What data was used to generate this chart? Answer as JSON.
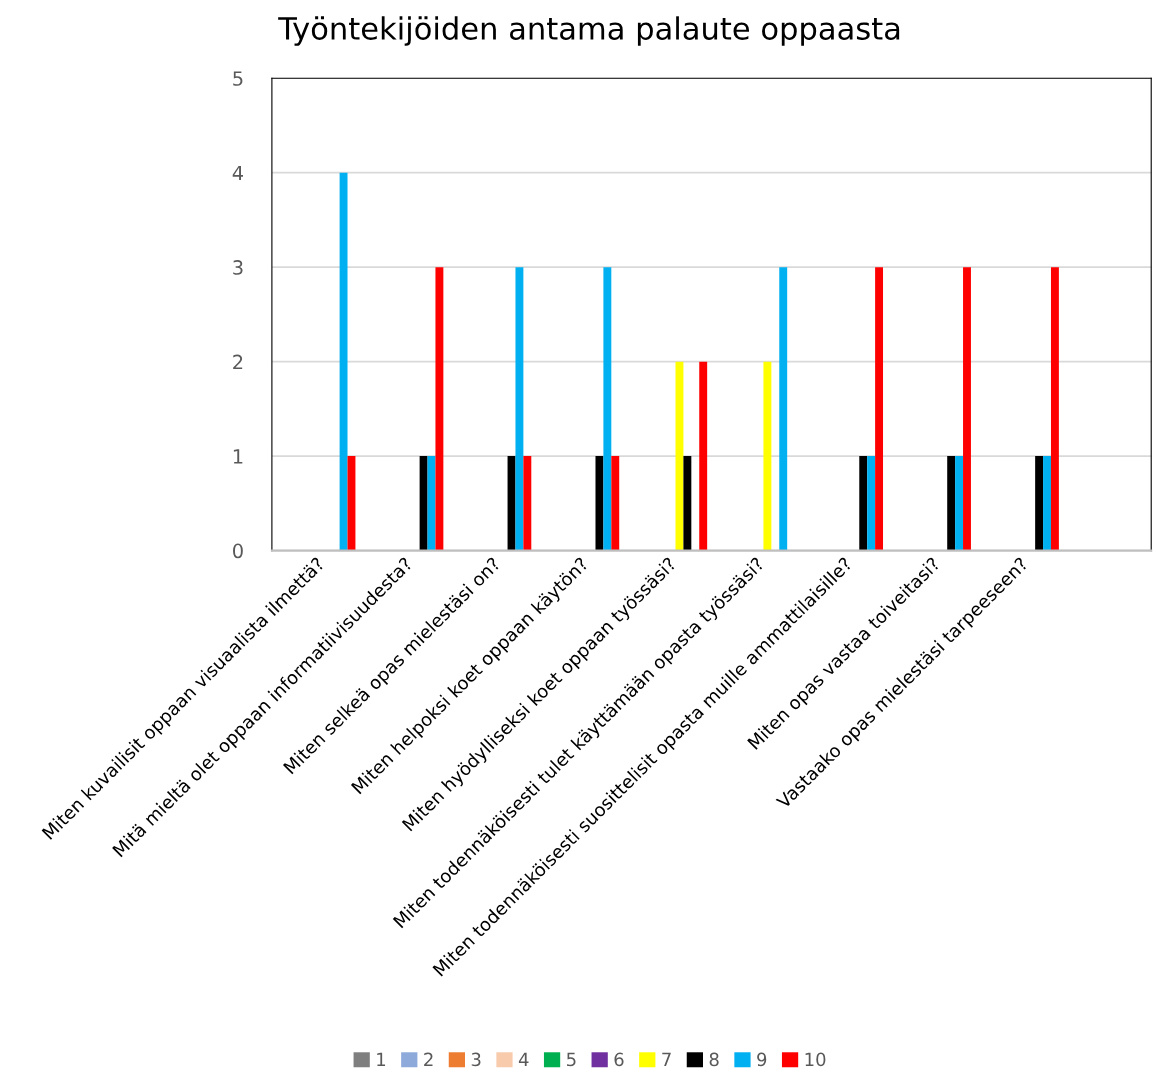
{
  "chart_data": {
    "type": "bar",
    "title": "Työntekijöiden antama palaute oppaasta",
    "categories": [
      "Miten kuvailisit oppaan visuaalista ilmettä?",
      "Mitä mieltä olet oppaan informatiivisuudesta?",
      "Miten selkeä opas mielestäsi on?",
      "Miten helpoksi koet oppaan käytön?",
      "Miten hyödylliseksi koet oppaan työssäsi?",
      "Miten todennäköisesti tulet käyttämään opasta työssäsi?",
      "Miten todennäköisesti suosittelisit opasta muille ammattilaisille?",
      "Miten opas vastaa toiveitasi?",
      "Vastaako opas mielestäsi tarpeeseen?",
      null
    ],
    "series": [
      {
        "name": "1",
        "color": "#7f7f7f",
        "values": [
          0,
          0,
          0,
          0,
          0,
          0,
          0,
          0,
          0,
          0
        ]
      },
      {
        "name": "2",
        "color": "#8eaadb",
        "values": [
          0,
          0,
          0,
          0,
          0,
          0,
          0,
          0,
          0,
          0
        ]
      },
      {
        "name": "3",
        "color": "#ed7d31",
        "values": [
          0,
          0,
          0,
          0,
          0,
          0,
          0,
          0,
          0,
          0
        ]
      },
      {
        "name": "4",
        "color": "#f8cbad",
        "values": [
          0,
          0,
          0,
          0,
          0,
          0,
          0,
          0,
          0,
          0
        ]
      },
      {
        "name": "5",
        "color": "#00b050",
        "values": [
          0,
          0,
          0,
          0,
          0,
          0,
          0,
          0,
          0,
          0
        ]
      },
      {
        "name": "6",
        "color": "#7030a0",
        "values": [
          0,
          0,
          0,
          0,
          0,
          0,
          0,
          0,
          0,
          0
        ]
      },
      {
        "name": "7",
        "color": "#ffff00",
        "values": [
          0,
          0,
          0,
          0,
          2,
          2,
          0,
          0,
          0,
          0
        ]
      },
      {
        "name": "8",
        "color": "#000000",
        "values": [
          0,
          1,
          1,
          1,
          1,
          0,
          1,
          1,
          1,
          0
        ]
      },
      {
        "name": "9",
        "color": "#00b0f0",
        "values": [
          4,
          1,
          3,
          3,
          0,
          3,
          1,
          1,
          1,
          0
        ]
      },
      {
        "name": "10",
        "color": "#ff0000",
        "values": [
          1,
          3,
          1,
          1,
          2,
          0,
          3,
          3,
          3,
          0
        ]
      }
    ],
    "ylim": [
      0,
      5
    ],
    "yticks": [
      0,
      1,
      2,
      3,
      4,
      5
    ],
    "grid": "y",
    "legend": "bottom"
  }
}
